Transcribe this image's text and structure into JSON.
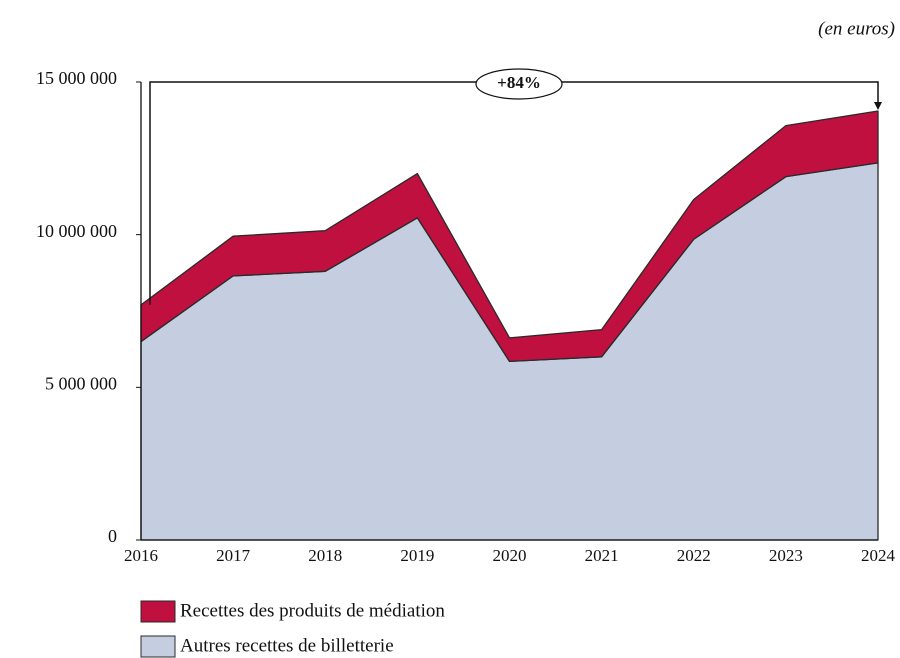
{
  "chart_data": {
    "type": "stacked_area",
    "unit_note": "(en euros)",
    "annotation": "+84%",
    "categories": [
      "2016",
      "2017",
      "2018",
      "2019",
      "2020",
      "2021",
      "2022",
      "2023",
      "2024"
    ],
    "series": [
      {
        "name": "Autres recettes de billetterie",
        "color": "#c5cee0",
        "values": [
          6500000,
          8650000,
          8800000,
          10550000,
          5850000,
          6000000,
          9850000,
          11900000,
          12350000
        ]
      },
      {
        "name": "Recettes des produits de médiation",
        "color": "#c0103f",
        "values": [
          1200000,
          1300000,
          1330000,
          1450000,
          770000,
          890000,
          1300000,
          1670000,
          1700000
        ]
      }
    ],
    "ylim": [
      0,
      15000000
    ],
    "yticks": [
      0,
      {
        "value": 5000000,
        "label": "5 000 000"
      },
      {
        "value": 10000000,
        "label": "10 000 000"
      },
      {
        "value": 15000000,
        "label": "15 000 000"
      }
    ],
    "grid": false
  }
}
